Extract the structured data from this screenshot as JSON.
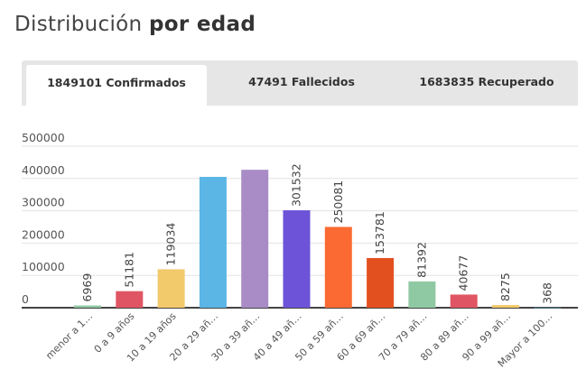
{
  "header": {
    "title_regular": "Distribución",
    "title_bold": "por edad"
  },
  "tabs": [
    {
      "label": "1849101 Confirmados",
      "active": true
    },
    {
      "label": "47491 Fallecidos",
      "active": false
    },
    {
      "label": "1683835 Recuperado",
      "active": false
    }
  ],
  "chart_data": {
    "type": "bar",
    "title": "",
    "xlabel": "",
    "ylabel": "",
    "ylim": [
      0,
      500000
    ],
    "yticks": [
      "0",
      "100000",
      "200000",
      "300000",
      "400000",
      "500000"
    ],
    "grid": true,
    "categories": [
      "menor a 1…",
      "0 a 9 años",
      "10 a 19 años",
      "20 a 29 añ…",
      "30 a 39 añ…",
      "40 a 49 añ…",
      "50 a 59 añ…",
      "60 a 69 añ…",
      "70 a 79 añ…",
      "80 a 89 añ…",
      "90 a 99 añ…",
      "Mayor a 100…"
    ],
    "values": [
      6969,
      51181,
      119034,
      405000,
      427000,
      301532,
      250081,
      153781,
      81392,
      40677,
      8275,
      368
    ],
    "labels": [
      "6969",
      "51181",
      "119034",
      "",
      "",
      "301532",
      "250081",
      "153781",
      "81392",
      "40677",
      "8275",
      "368"
    ],
    "colors": [
      "#8fc9a3",
      "#e05563",
      "#f2c96b",
      "#5bb5e5",
      "#a98cc6",
      "#6d53d8",
      "#fb6a32",
      "#e3501f",
      "#8fc9a3",
      "#e05563",
      "#f2c96b",
      "#5bb5e5"
    ]
  }
}
